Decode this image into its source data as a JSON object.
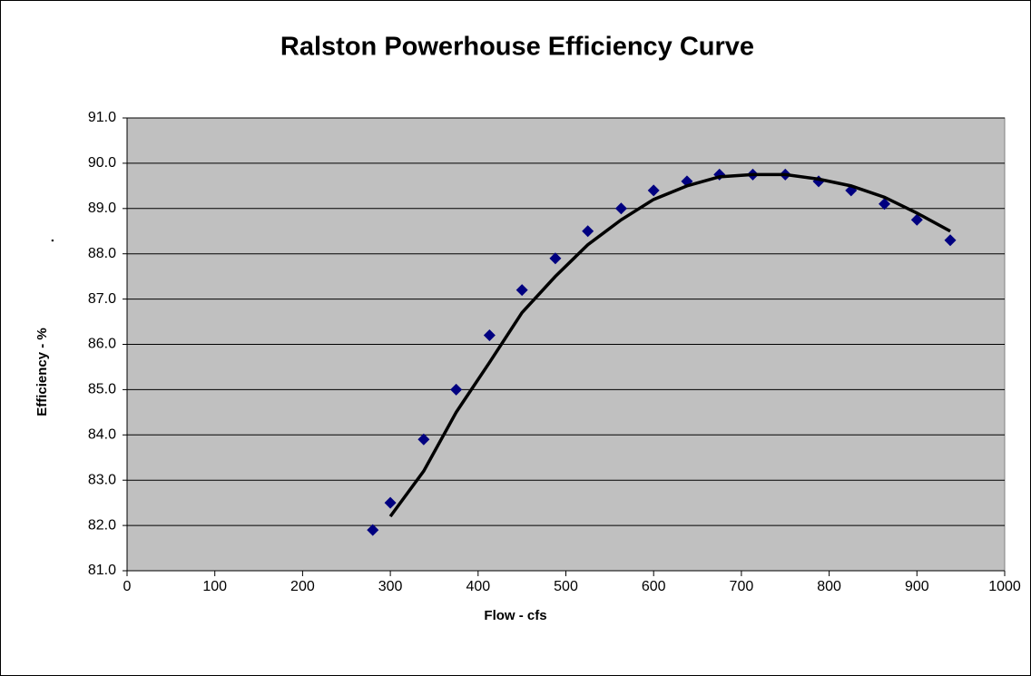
{
  "chart_data": {
    "type": "scatter",
    "title": "Ralston Powerhouse Efficiency Curve",
    "xlabel": "Flow - cfs",
    "ylabel": "Efficiency - %",
    "annotation": ".",
    "xlim": [
      0,
      1000
    ],
    "xticks": [
      0,
      100,
      200,
      300,
      400,
      500,
      600,
      700,
      800,
      900,
      1000
    ],
    "ylim": [
      81,
      91
    ],
    "yticks": [
      {
        "value": 81,
        "label": "81.0"
      },
      {
        "value": 82,
        "label": "82.0"
      },
      {
        "value": 83,
        "label": "83.0"
      },
      {
        "value": 84,
        "label": "84.0"
      },
      {
        "value": 85,
        "label": "85.0"
      },
      {
        "value": 86,
        "label": "86.0"
      },
      {
        "value": 87,
        "label": "87.0"
      },
      {
        "value": 88,
        "label": "88.0"
      },
      {
        "value": 89,
        "label": "89.0"
      },
      {
        "value": 90,
        "label": "90.0"
      },
      {
        "value": 91,
        "label": "91.0"
      }
    ],
    "grid": true,
    "plot_background": "#c0c0c0",
    "series": [
      {
        "kind": "markers",
        "color": "#000080",
        "x": [
          280,
          300,
          338,
          375,
          413,
          450,
          488,
          525,
          563,
          600,
          638,
          675,
          713,
          750,
          788,
          825,
          863,
          900,
          938
        ],
        "values": [
          81.9,
          82.5,
          83.9,
          85.0,
          86.2,
          87.2,
          87.9,
          88.5,
          89.0,
          89.4,
          89.6,
          89.75,
          89.75,
          89.75,
          89.6,
          89.4,
          89.1,
          88.75,
          88.3
        ]
      },
      {
        "kind": "line",
        "color": "#000000",
        "x": [
          300,
          338,
          375,
          413,
          450,
          488,
          525,
          563,
          600,
          638,
          675,
          713,
          750,
          788,
          825,
          863,
          900,
          938
        ],
        "values": [
          82.2,
          83.2,
          84.5,
          85.6,
          86.7,
          87.5,
          88.2,
          88.75,
          89.2,
          89.5,
          89.7,
          89.75,
          89.75,
          89.65,
          89.5,
          89.25,
          88.9,
          88.5
        ]
      }
    ]
  }
}
